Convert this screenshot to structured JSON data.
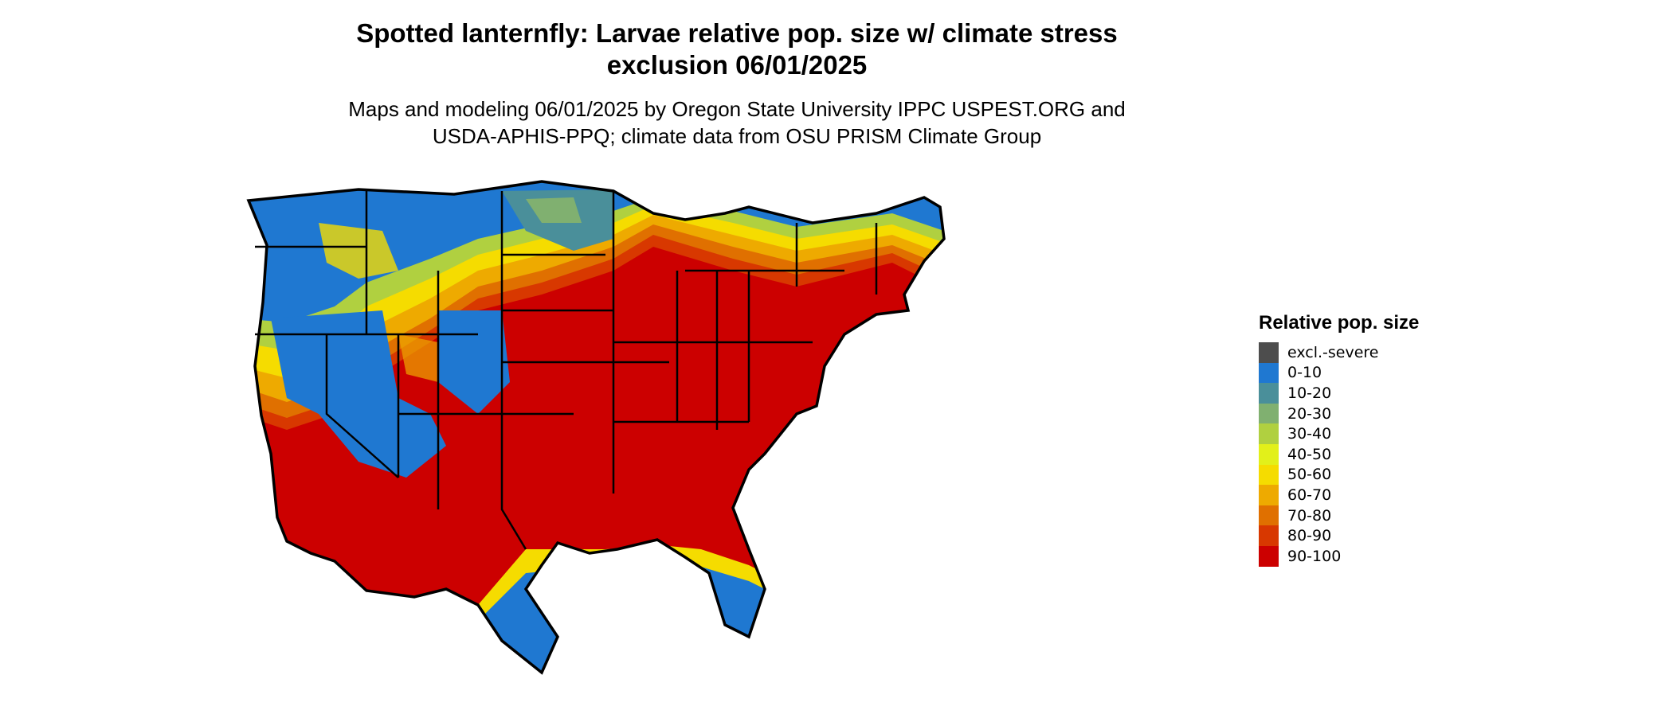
{
  "title_line1": "Spotted lanternfly: Larvae relative pop. size w/ climate stress",
  "title_line2": "exclusion 06/01/2025",
  "subtitle_line1": "Maps and modeling 06/01/2025 by Oregon State University IPPC USPEST.ORG and",
  "subtitle_line2": "USDA-APHIS-PPQ; climate data from OSU PRISM Climate Group",
  "legend": {
    "title": "Relative pop. size",
    "items": [
      {
        "label": "excl.-severe",
        "color": "#4d4d4d"
      },
      {
        "label": "0-10",
        "color": "#1f78d1"
      },
      {
        "label": "10-20",
        "color": "#4a8f9a"
      },
      {
        "label": "20-30",
        "color": "#80b070"
      },
      {
        "label": "30-40",
        "color": "#b0d040"
      },
      {
        "label": "40-50",
        "color": "#e2f01a"
      },
      {
        "label": "50-60",
        "color": "#f5dc00"
      },
      {
        "label": "60-70",
        "color": "#eeaa00"
      },
      {
        "label": "70-80",
        "color": "#e07000"
      },
      {
        "label": "80-90",
        "color": "#d83800"
      },
      {
        "label": "90-100",
        "color": "#cc0000"
      }
    ]
  }
}
